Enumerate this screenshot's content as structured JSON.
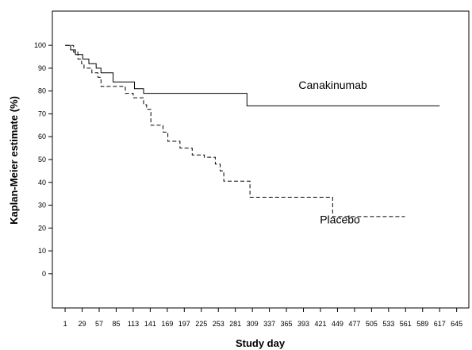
{
  "chart_data": {
    "type": "line",
    "step": true,
    "xlabel": "Study day",
    "ylabel": "Kaplan-Meier estimate (%)",
    "x_ticks": [
      1,
      29,
      57,
      85,
      113,
      141,
      169,
      197,
      225,
      253,
      281,
      309,
      337,
      365,
      393,
      421,
      449,
      477,
      505,
      533,
      561,
      589,
      617,
      645
    ],
    "y_ticks": [
      0,
      10,
      20,
      30,
      40,
      50,
      60,
      70,
      80,
      90,
      100
    ],
    "xlim": [
      -20,
      665
    ],
    "ylim": [
      -15,
      115
    ],
    "grid": false,
    "legend": "none (series labeled directly on plot)",
    "series": [
      {
        "name": "Canakinumab",
        "line_style": "solid",
        "points": [
          [
            1,
            100
          ],
          [
            10,
            100
          ],
          [
            10,
            98
          ],
          [
            18,
            98
          ],
          [
            18,
            96
          ],
          [
            30,
            96
          ],
          [
            30,
            94
          ],
          [
            40,
            94
          ],
          [
            40,
            92
          ],
          [
            52,
            92
          ],
          [
            52,
            90
          ],
          [
            60,
            90
          ],
          [
            60,
            88
          ],
          [
            80,
            88
          ],
          [
            80,
            84
          ],
          [
            115,
            84
          ],
          [
            115,
            81
          ],
          [
            130,
            81
          ],
          [
            130,
            79
          ],
          [
            300,
            79
          ],
          [
            300,
            73.5
          ],
          [
            617,
            73.5
          ]
        ]
      },
      {
        "name": "Placebo",
        "line_style": "dashed",
        "points": [
          [
            1,
            100
          ],
          [
            15,
            100
          ],
          [
            15,
            97
          ],
          [
            22,
            97
          ],
          [
            22,
            94
          ],
          [
            28,
            94
          ],
          [
            28,
            92
          ],
          [
            32,
            92
          ],
          [
            32,
            90
          ],
          [
            45,
            90
          ],
          [
            45,
            88
          ],
          [
            55,
            88
          ],
          [
            55,
            86
          ],
          [
            60,
            86
          ],
          [
            60,
            82
          ],
          [
            100,
            82
          ],
          [
            100,
            79
          ],
          [
            113,
            79
          ],
          [
            113,
            77
          ],
          [
            130,
            77
          ],
          [
            130,
            74
          ],
          [
            135,
            74
          ],
          [
            135,
            72
          ],
          [
            142,
            72
          ],
          [
            142,
            65
          ],
          [
            162,
            65
          ],
          [
            162,
            62
          ],
          [
            170,
            62
          ],
          [
            170,
            58
          ],
          [
            190,
            58
          ],
          [
            190,
            55
          ],
          [
            210,
            55
          ],
          [
            210,
            52
          ],
          [
            230,
            52
          ],
          [
            230,
            51
          ],
          [
            248,
            51
          ],
          [
            248,
            48
          ],
          [
            256,
            48
          ],
          [
            256,
            45
          ],
          [
            262,
            45
          ],
          [
            262,
            40.5
          ],
          [
            305,
            40.5
          ],
          [
            305,
            33.5
          ],
          [
            441,
            33.5
          ],
          [
            441,
            25
          ],
          [
            560,
            25
          ]
        ]
      }
    ],
    "series_labels": [
      {
        "text": "Canakinumab",
        "series": "Canakinumab",
        "x": 385,
        "y": 81
      },
      {
        "text": "Placebo",
        "series": "Placebo",
        "x": 420,
        "y": 22
      }
    ]
  }
}
